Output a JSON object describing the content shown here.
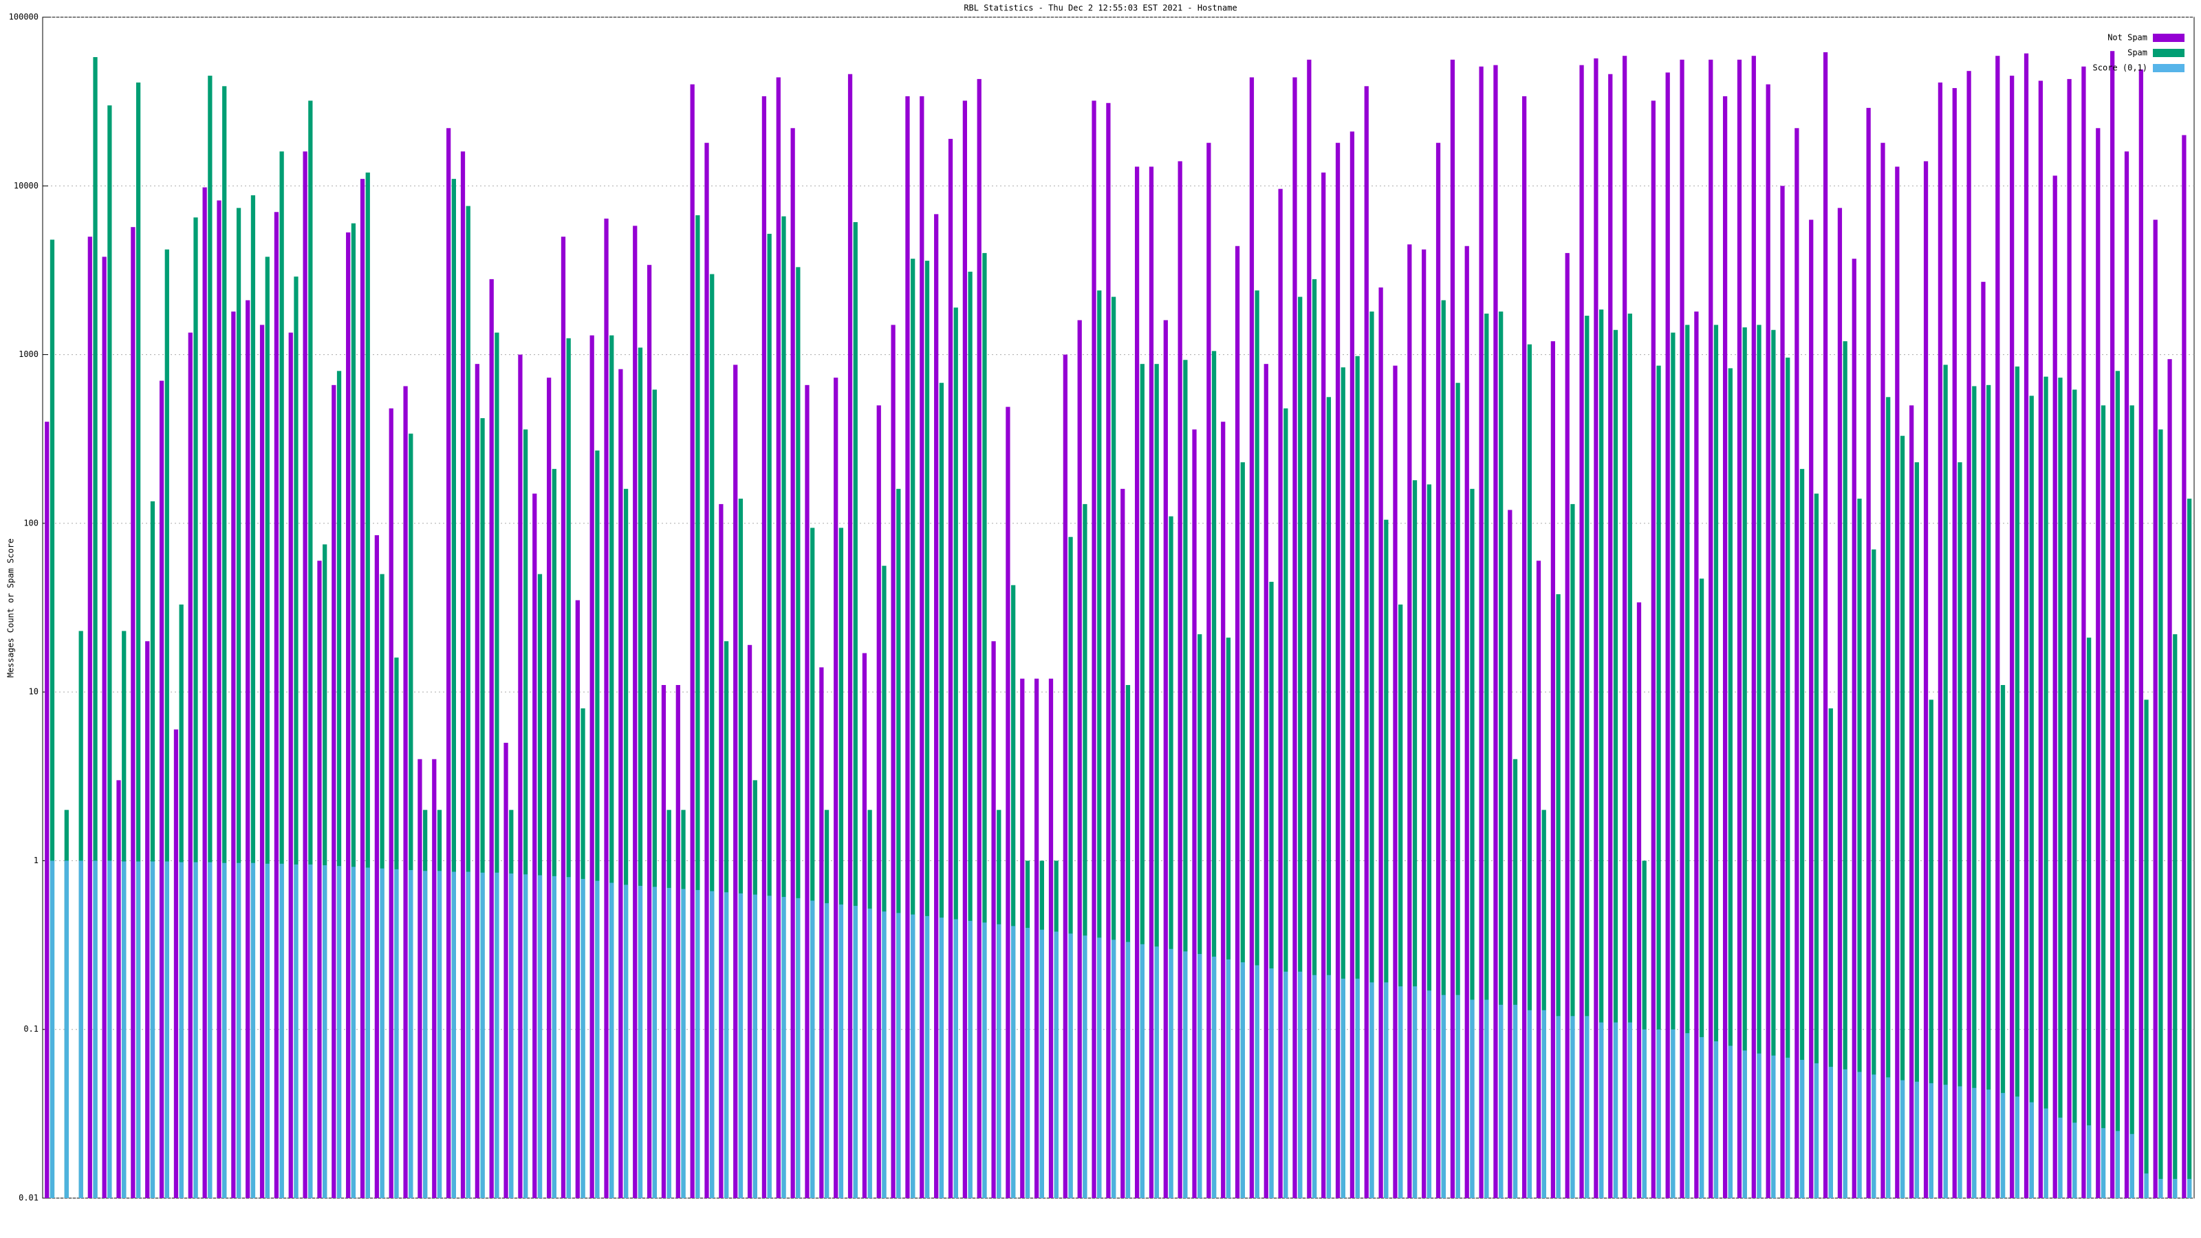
{
  "chart_data": {
    "type": "bar",
    "log_scale": true,
    "grid": true,
    "legend": "top-right",
    "title": "RBL Statistics - Thu Dec  2 12:55:03 EST 2021 - Hostname",
    "y_label": "Messages Count or Spam Score",
    "ylim": [
      0.01,
      100000
    ],
    "yticks": [
      0.01,
      0.1,
      1,
      10,
      100,
      1000,
      10000,
      100000
    ],
    "categories": [
      null,
      null,
      null,
      null,
      null,
      null,
      null,
      null,
      null,
      null,
      null,
      null,
      null,
      null,
      null,
      null,
      null,
      null,
      null,
      null,
      null,
      null,
      null,
      null,
      null,
      null,
      null,
      null,
      null,
      null,
      null,
      null,
      null,
      null,
      null,
      null,
      null,
      null,
      null,
      null,
      null,
      null,
      null,
      null,
      null,
      null,
      null,
      null,
      null,
      null,
      null,
      null,
      null,
      null,
      null,
      null,
      null,
      null,
      null,
      null,
      null,
      null,
      null,
      null,
      null,
      null,
      null,
      null,
      null,
      null,
      null,
      null,
      null,
      null,
      null,
      null,
      null,
      null,
      null,
      null,
      null,
      null,
      null,
      null,
      null,
      null,
      null,
      null,
      null,
      null,
      null,
      null,
      null,
      null,
      null,
      null,
      null,
      null,
      null,
      null,
      null,
      null,
      null,
      null,
      null,
      null,
      null,
      null,
      null,
      null,
      null,
      null,
      null,
      null,
      null,
      null,
      null,
      null,
      null,
      null,
      null,
      null,
      null,
      null,
      null,
      null,
      null,
      null,
      null,
      null,
      null,
      null,
      null,
      null,
      null,
      null,
      null,
      null,
      null,
      null,
      null,
      null,
      null,
      null,
      null,
      null,
      null,
      null,
      null,
      null
    ],
    "series": [
      {
        "name": "Not Spam",
        "color": "#9400d3",
        "values": [
          400,
          null,
          null,
          5000,
          3800,
          3,
          5700,
          20,
          700,
          6,
          1350,
          9800,
          8200,
          1800,
          2100,
          1500,
          7000,
          1350,
          16000,
          60,
          660,
          5300,
          11000,
          85,
          480,
          650,
          4,
          4,
          22000,
          16000,
          880,
          2800,
          5,
          1000,
          150,
          730,
          5000,
          35,
          1300,
          6400,
          820,
          5800,
          3400,
          11,
          11,
          40000,
          18000,
          130,
          870,
          19,
          34000,
          44000,
          22000,
          660,
          14,
          730,
          46000,
          17,
          500,
          1500,
          34000,
          34000,
          6800,
          19000,
          32000,
          43000,
          20,
          490,
          12,
          12,
          12,
          1000,
          1600,
          32000,
          31000,
          160,
          13000,
          13000,
          1600,
          14000,
          360,
          18000,
          400,
          4400,
          44000,
          880,
          9600,
          44000,
          56000,
          12000,
          18000,
          21000,
          39000,
          2500,
          860,
          4500,
          4200,
          18000,
          56000,
          4400,
          51000,
          52000,
          120,
          34000,
          60,
          1200,
          4000,
          52000,
          57000,
          46000,
          59000,
          34,
          32000,
          47000,
          56000,
          1800,
          56000,
          34000,
          56000,
          59000,
          40000,
          10000,
          22000,
          6300,
          62000,
          7400,
          3700,
          29000,
          18000,
          13000,
          500,
          14000,
          41000,
          38000,
          48000,
          2700,
          59000,
          45000,
          61000,
          42000,
          11500,
          43000,
          51000,
          22000,
          63000,
          16000,
          49000,
          6300,
          940,
          20000
        ]
      },
      {
        "name": "Spam",
        "color": "#009e73",
        "values": [
          4800,
          2,
          23,
          58000,
          30000,
          23,
          41000,
          135,
          4200,
          33,
          6500,
          45000,
          39000,
          7400,
          8800,
          3800,
          16000,
          2900,
          32000,
          75,
          800,
          6000,
          12000,
          50,
          16,
          340,
          2,
          2,
          11000,
          7600,
          420,
          1350,
          2,
          360,
          50,
          210,
          1250,
          8,
          270,
          1300,
          160,
          1100,
          620,
          2,
          2,
          6700,
          3000,
          20,
          140,
          3,
          5200,
          6600,
          3300,
          94,
          2,
          94,
          6100,
          2,
          56,
          160,
          3700,
          3600,
          680,
          1900,
          3100,
          4000,
          2,
          43,
          1,
          1,
          1,
          83,
          130,
          2400,
          2200,
          11,
          880,
          880,
          110,
          930,
          22,
          1050,
          21,
          230,
          2400,
          45,
          480,
          2200,
          2800,
          560,
          840,
          980,
          1800,
          105,
          33,
          180,
          170,
          2100,
          680,
          160,
          1750,
          1800,
          4,
          1150,
          2,
          38,
          130,
          1700,
          1850,
          1400,
          1750,
          1,
          860,
          1350,
          1500,
          47,
          1500,
          830,
          1450,
          1500,
          1400,
          960,
          210,
          150,
          8,
          1200,
          140,
          70,
          560,
          330,
          230,
          9,
          870,
          230,
          650,
          660,
          11,
          850,
          570,
          740,
          730,
          620,
          21,
          500,
          800,
          500,
          9,
          360,
          22,
          140
        ]
      },
      {
        "name": "Score (0,1)",
        "color": "#56b4e9",
        "values": [
          1,
          1,
          1,
          1,
          1,
          0.99,
          0.99,
          0.99,
          0.99,
          0.98,
          0.98,
          0.98,
          0.97,
          0.97,
          0.97,
          0.96,
          0.96,
          0.95,
          0.95,
          0.94,
          0.93,
          0.92,
          0.91,
          0.9,
          0.89,
          0.88,
          0.87,
          0.87,
          0.86,
          0.86,
          0.85,
          0.85,
          0.84,
          0.83,
          0.82,
          0.81,
          0.8,
          0.78,
          0.76,
          0.74,
          0.72,
          0.71,
          0.7,
          0.69,
          0.68,
          0.67,
          0.66,
          0.65,
          0.64,
          0.63,
          0.62,
          0.61,
          0.6,
          0.58,
          0.56,
          0.55,
          0.54,
          0.52,
          0.5,
          0.49,
          0.48,
          0.47,
          0.46,
          0.45,
          0.44,
          0.43,
          0.42,
          0.41,
          0.4,
          0.39,
          0.38,
          0.37,
          0.36,
          0.35,
          0.34,
          0.33,
          0.32,
          0.31,
          0.3,
          0.29,
          0.28,
          0.27,
          0.26,
          0.25,
          0.24,
          0.23,
          0.22,
          0.22,
          0.21,
          0.21,
          0.2,
          0.2,
          0.19,
          0.19,
          0.18,
          0.18,
          0.17,
          0.16,
          0.16,
          0.15,
          0.15,
          0.14,
          0.14,
          0.13,
          0.13,
          0.12,
          0.12,
          0.12,
          0.11,
          0.11,
          0.11,
          0.1,
          0.1,
          0.1,
          0.095,
          0.09,
          0.085,
          0.08,
          0.075,
          0.072,
          0.07,
          0.068,
          0.066,
          0.063,
          0.06,
          0.058,
          0.056,
          0.054,
          0.052,
          0.05,
          0.049,
          0.048,
          0.047,
          0.046,
          0.045,
          0.044,
          0.042,
          0.04,
          0.037,
          0.034,
          0.03,
          0.028,
          0.027,
          0.026,
          0.025,
          0.024,
          0.014,
          0.013,
          0.013,
          0.013
        ]
      }
    ]
  }
}
